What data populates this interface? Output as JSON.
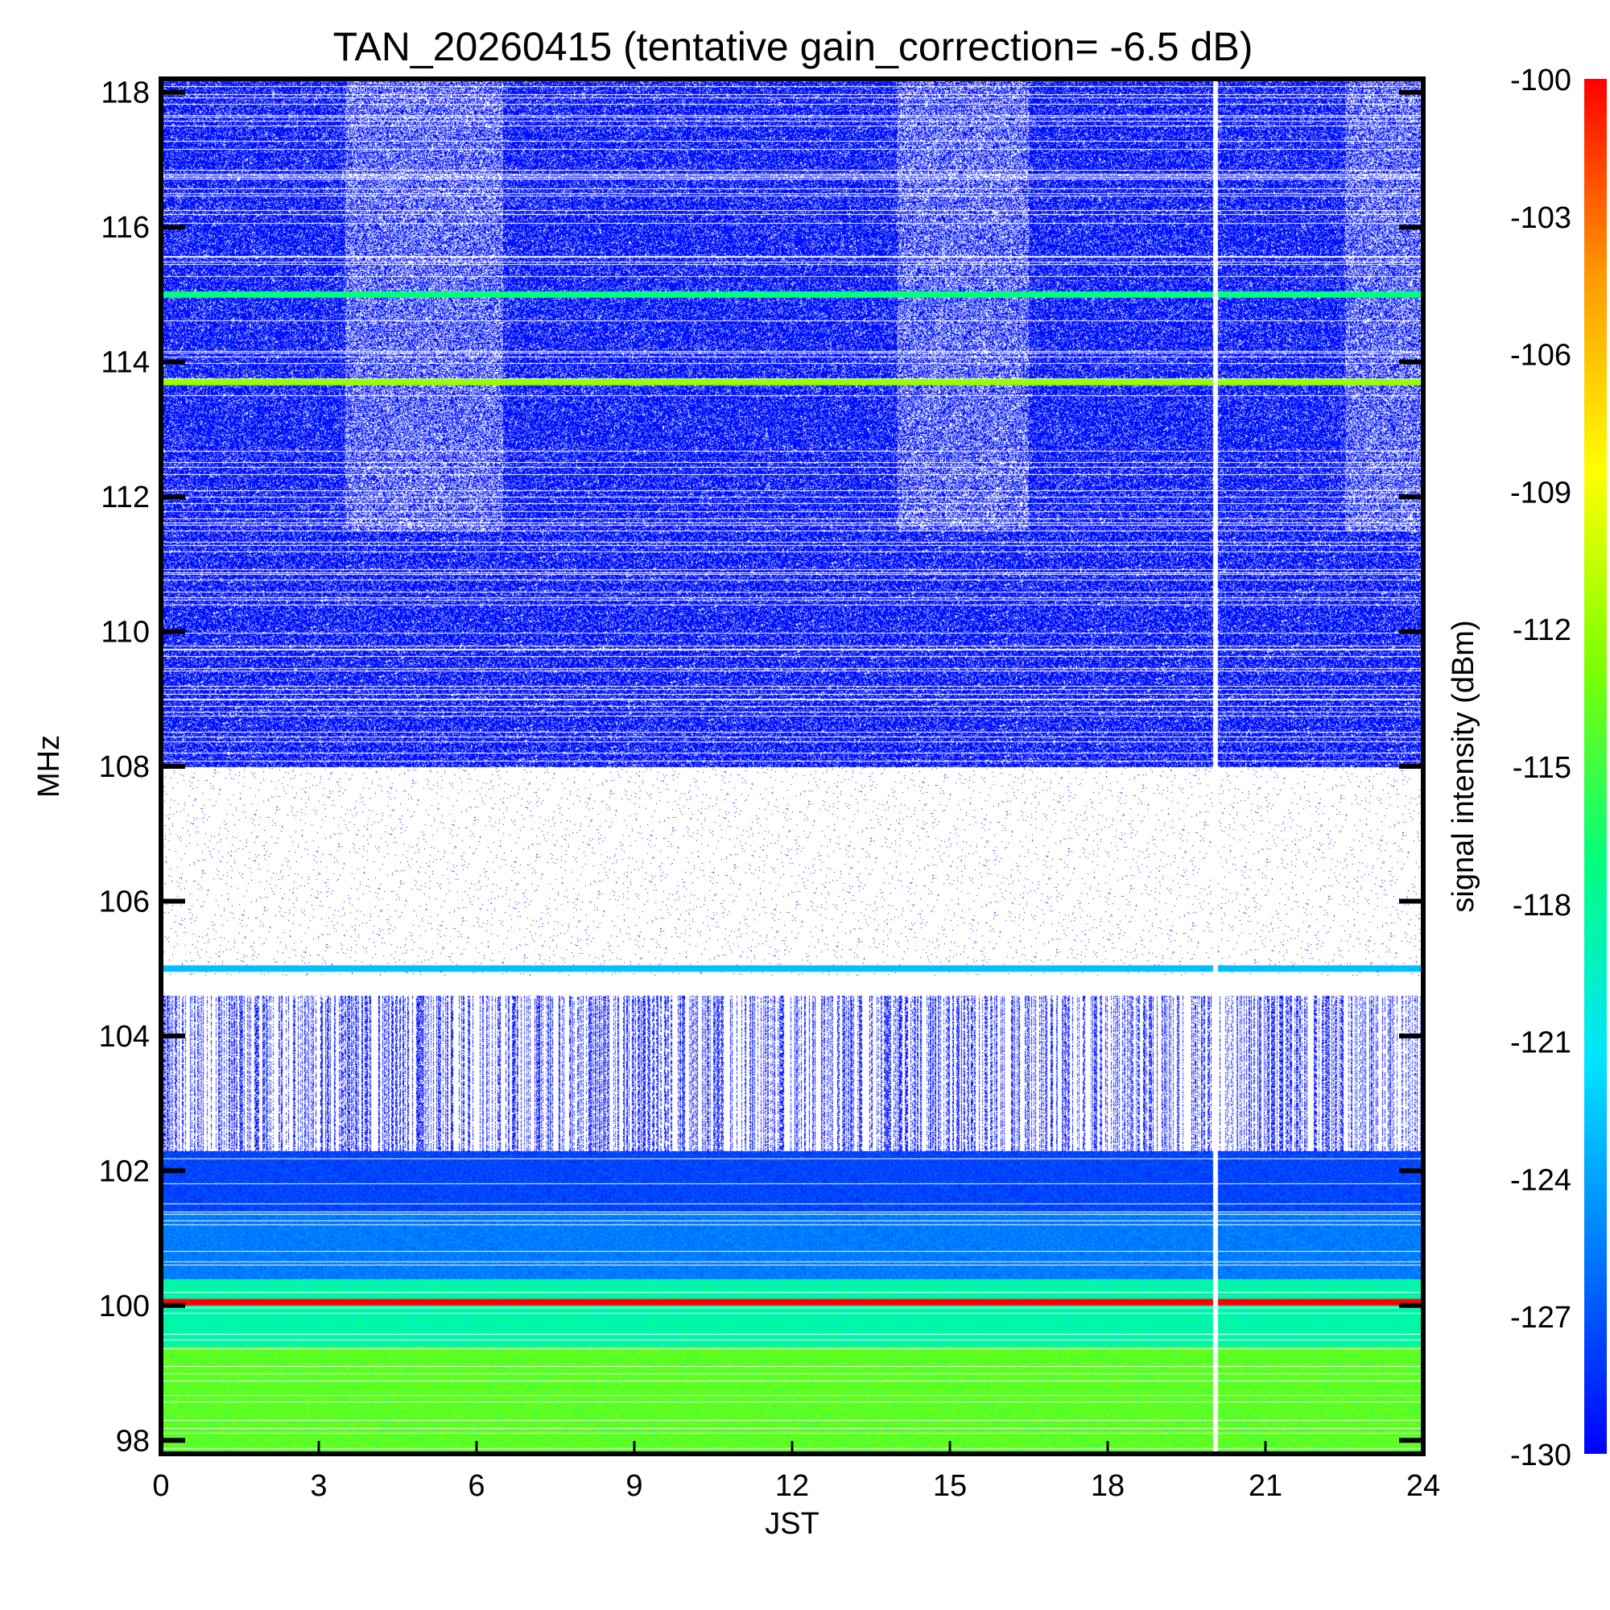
{
  "chart_data": {
    "type": "heatmap",
    "title": "TAN_20260415 (tentative gain_correction= -6.5 dB)",
    "xlabel": "JST",
    "ylabel": "MHz",
    "xlim": [
      0,
      24
    ],
    "ylim": [
      97.8,
      118.2
    ],
    "xticks": [
      "0",
      "3",
      "6",
      "9",
      "12",
      "15",
      "18",
      "21",
      "24"
    ],
    "yticks": [
      "98",
      "100",
      "102",
      "104",
      "106",
      "108",
      "110",
      "112",
      "114",
      "116",
      "118"
    ],
    "colorbar": {
      "label": "signal intensity (dBm)",
      "range": [
        -130,
        -100
      ],
      "ticks": [
        "-100",
        "-103",
        "-106",
        "-109",
        "-112",
        "-115",
        "-118",
        "-121",
        "-124",
        "-127",
        "-130"
      ],
      "colormap": [
        "#0000ff",
        "#0077ff",
        "#00e5ff",
        "#00ff80",
        "#7dff00",
        "#ffff00",
        "#ff9900",
        "#ff0000"
      ]
    },
    "bands": [
      {
        "from": 108.0,
        "to": 118.2,
        "level_dbm": -129.5,
        "texture": "dense",
        "sparsity": 0.15
      },
      {
        "from": 104.9,
        "to": 108.0,
        "level_dbm": -131,
        "texture": "sparse",
        "sparsity": 0.985
      },
      {
        "from": 102.3,
        "to": 104.6,
        "level_dbm": -129.5,
        "texture": "vertical-streaks",
        "sparsity": 0.55
      },
      {
        "from": 101.4,
        "to": 102.3,
        "level_dbm": -127.5,
        "texture": "dense",
        "sparsity": 0.0
      },
      {
        "from": 100.4,
        "to": 101.4,
        "level_dbm": -125.5,
        "texture": "dense",
        "sparsity": 0.0
      },
      {
        "from": 99.4,
        "to": 100.4,
        "level_dbm": -118.5,
        "texture": "dense",
        "sparsity": 0.0
      },
      {
        "from": 97.8,
        "to": 99.4,
        "level_dbm": -114,
        "texture": "dense",
        "sparsity": 0.0
      }
    ],
    "strong_lines": [
      {
        "freq": 115.0,
        "level_dbm": -117
      },
      {
        "freq": 113.7,
        "level_dbm": -112
      },
      {
        "freq": 105.0,
        "level_dbm": -123
      },
      {
        "freq": 100.05,
        "level_dbm": -100
      }
    ],
    "gaps": [
      {
        "time": 20.05,
        "note": "no data"
      }
    ]
  }
}
